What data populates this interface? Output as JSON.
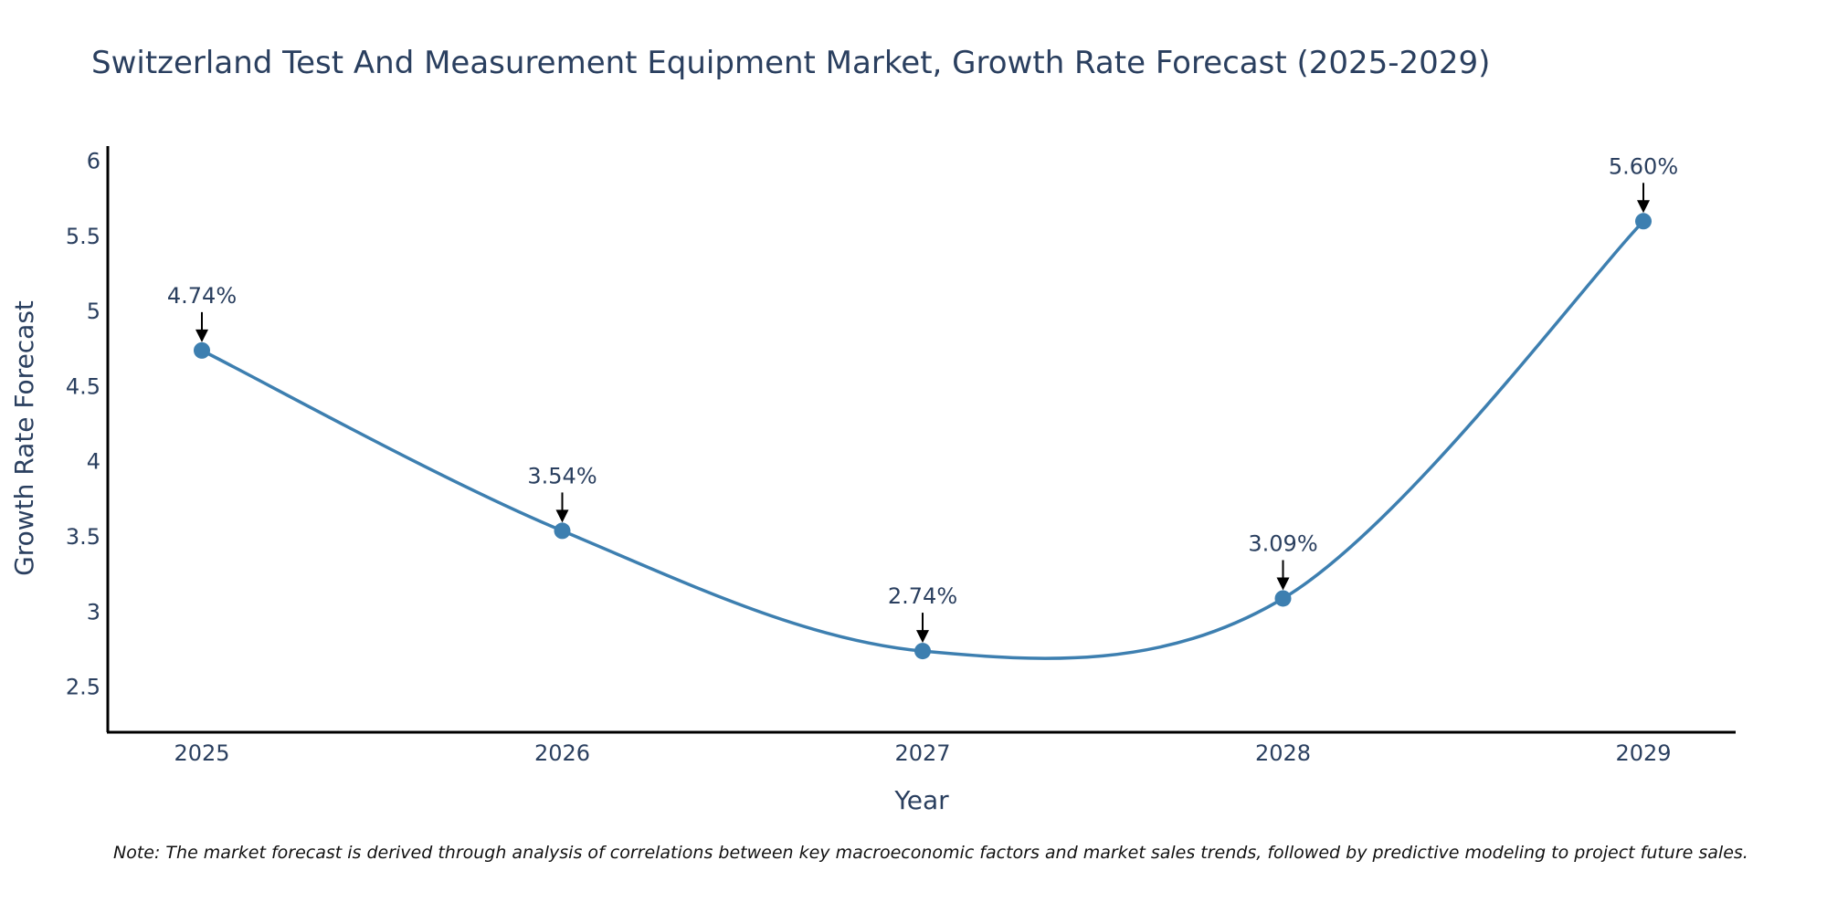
{
  "chart_data": {
    "type": "line",
    "title": "Switzerland Test And Measurement Equipment Market, Growth Rate Forecast (2025-2029)",
    "xlabel": "Year",
    "ylabel": "Growth Rate Forecast",
    "categories": [
      "2025",
      "2026",
      "2027",
      "2028",
      "2029"
    ],
    "series": [
      {
        "name": "Growth Rate Forecast",
        "values": [
          4.74,
          3.54,
          2.74,
          3.09,
          5.6
        ],
        "labels": [
          "4.74%",
          "3.54%",
          "2.74%",
          "3.09%",
          "5.60%"
        ]
      }
    ],
    "ylim": [
      2.2,
      6.1
    ],
    "yticks": [
      2.5,
      3,
      3.5,
      4,
      4.5,
      5,
      5.5,
      6
    ],
    "ytick_labels": [
      "2.5",
      "3",
      "3.5",
      "4",
      "4.5",
      "5",
      "5.5",
      "6"
    ],
    "grid": false,
    "line_color": "#3d7fb0",
    "marker_color": "#3d7fb0",
    "arrow_color": "#000000",
    "axis_color": "#000000"
  },
  "note": "Note: The market forecast is derived through analysis of correlations between key macroeconomic factors and market sales trends, followed by predictive modeling to project future sales."
}
